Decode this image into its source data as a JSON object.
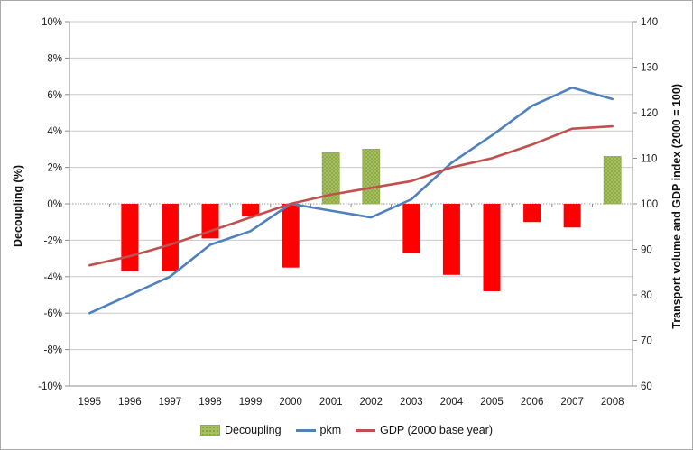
{
  "chart_data": {
    "type": "combo_bar_line",
    "title": "",
    "categories": [
      "1995",
      "1996",
      "1997",
      "1998",
      "1999",
      "2000",
      "2001",
      "2002",
      "2003",
      "2004",
      "2005",
      "2006",
      "2007",
      "2008"
    ],
    "series": [
      {
        "name": "Decoupling",
        "type": "bar",
        "axis": "left",
        "unit": "%",
        "values": [
          null,
          -3.7,
          -3.7,
          -1.9,
          -0.7,
          -3.5,
          2.8,
          3.0,
          -2.7,
          -3.9,
          -4.8,
          -1.0,
          -1.3,
          2.6
        ]
      },
      {
        "name": "pkm",
        "type": "line",
        "axis": "right",
        "values": [
          76,
          80,
          84,
          91,
          94,
          100,
          98.5,
          97,
          101,
          109,
          115,
          121.5,
          125.5,
          123
        ]
      },
      {
        "name": "GDP (2000 base year)",
        "type": "line",
        "axis": "right",
        "values": [
          86.5,
          88.5,
          91,
          94,
          97,
          100,
          102,
          103.5,
          105,
          108,
          110,
          113,
          116.5,
          117
        ]
      }
    ],
    "left_axis": {
      "title": "Decoupling (%)",
      "ticks": [
        "10%",
        "8%",
        "6%",
        "4%",
        "2%",
        "0%",
        "-2%",
        "-4%",
        "-6%",
        "-8%",
        "-10%"
      ],
      "min": -10,
      "max": 10
    },
    "right_axis": {
      "title": "Transport volume and GDP index  (2000 = 100)",
      "ticks": [
        "140",
        "130",
        "120",
        "110",
        "100",
        "90",
        "80",
        "70",
        "60"
      ],
      "min": 60,
      "max": 140
    },
    "legend": {
      "position": "bottom",
      "items": [
        "Decoupling",
        "pkm",
        "GDP (2000 base year)"
      ]
    },
    "grid": true,
    "colors": {
      "bar_negative": "#FF0000",
      "bar_positive_base": "#A6C05F",
      "bar_positive_dot": "#7C9A3C",
      "bar_positive_border": "#8FAD4B",
      "pkm_line": "#4F81BD",
      "gdp_line": "#C0504D",
      "gridline": "#C9C9C9",
      "zero_line": "#9B9B9B",
      "axis_line": "#8C8C8C",
      "text": "#1A1A1A"
    }
  }
}
